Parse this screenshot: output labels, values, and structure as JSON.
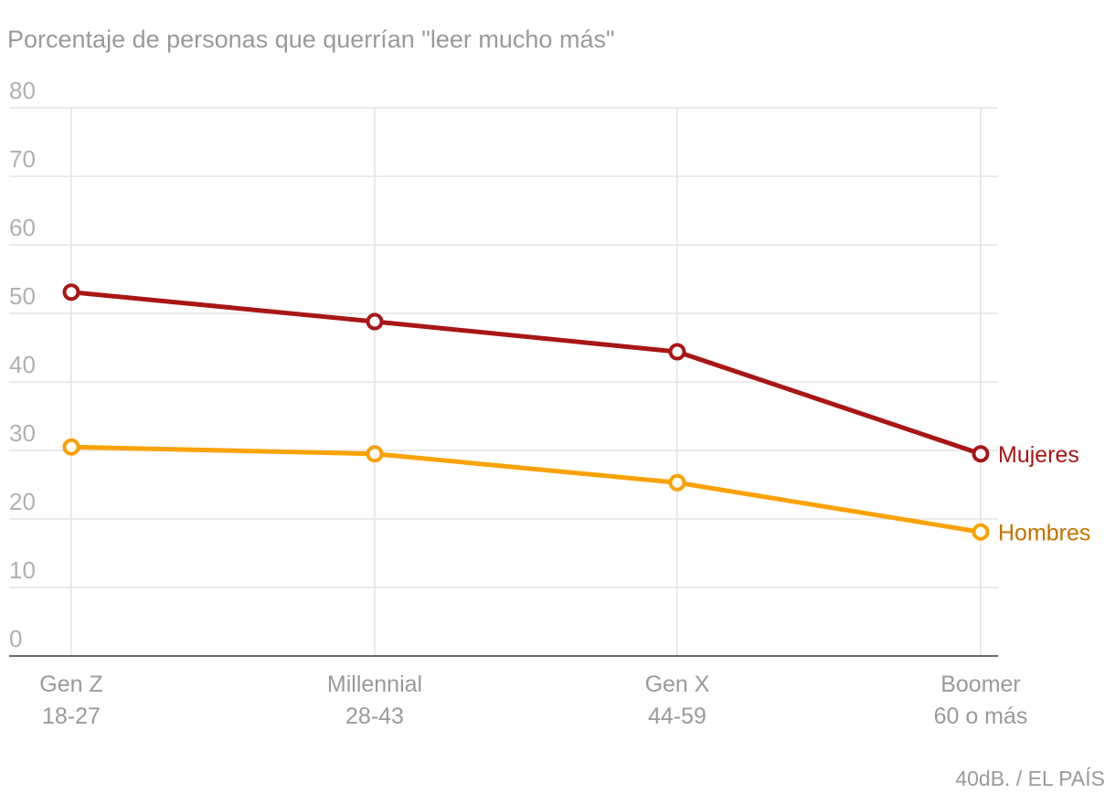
{
  "chart_data": {
    "type": "line",
    "title": "Porcentaje de personas que querrían \"leer mucho más\"",
    "categories": [
      {
        "name": "Gen Z",
        "range": "18-27"
      },
      {
        "name": "Millennial",
        "range": "28-43"
      },
      {
        "name": "Gen X",
        "range": "44-59"
      },
      {
        "name": "Boomer",
        "range": "60 o más"
      }
    ],
    "ylim": [
      0,
      80
    ],
    "yticks": [
      0,
      10,
      20,
      30,
      40,
      50,
      60,
      70,
      80
    ],
    "grid": true,
    "series": [
      {
        "name": "Mujeres",
        "values": [
          53.1,
          48.8,
          44.4,
          29.5
        ],
        "color": "#a81616",
        "label_color": "#a81616"
      },
      {
        "name": "Hombres",
        "values": [
          30.5,
          29.5,
          25.3,
          18.1
        ],
        "color": "#f9a200",
        "label_color": "#c27300"
      }
    ],
    "legend": "inline-right",
    "source": "40dB. / EL PAÍS"
  }
}
